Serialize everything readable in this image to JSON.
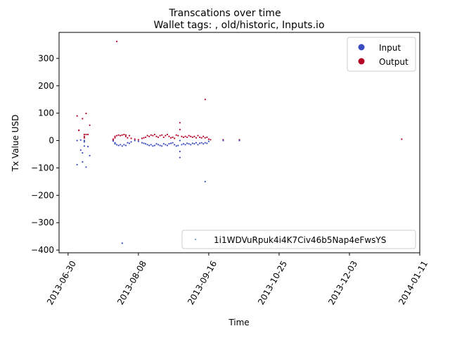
{
  "chart_data": {
    "type": "scatter",
    "title": "Transcations over time",
    "subtitle": "Wallet tags: , old/historic, Inputs.io",
    "xlabel": "Time",
    "ylabel": "Tx Value USD",
    "x_range": [
      "2013-06-25",
      "2014-01-11"
    ],
    "ylim": [
      -410,
      395
    ],
    "x_ticks": [
      "2013-06-30",
      "2013-08-08",
      "2013-09-16",
      "2013-10-25",
      "2013-12-03",
      "2014-01-11"
    ],
    "y_ticks": [
      -400,
      -300,
      -200,
      -100,
      0,
      100,
      200,
      300
    ],
    "grid": false,
    "legend_top": {
      "position": "upper right",
      "entries": [
        {
          "label": "Input",
          "color": "#3b4cc0"
        },
        {
          "label": "Output",
          "color": "#b40426"
        }
      ]
    },
    "legend_bottom": {
      "position": "lower right",
      "entries": [
        {
          "label": "1i1WDVuRpuk4i4K7Civ46b5Nap4eFwsYS",
          "color": "#3b8ea5"
        }
      ]
    },
    "series": [
      {
        "name": "Output",
        "color": "#b40426",
        "points": [
          [
            "2013-07-05",
            90
          ],
          [
            "2013-07-06",
            38
          ],
          [
            "2013-07-06",
            37
          ],
          [
            "2013-07-08",
            80
          ],
          [
            "2013-07-09",
            22
          ],
          [
            "2013-07-09",
            15
          ],
          [
            "2013-07-09",
            10
          ],
          [
            "2013-07-10",
            99
          ],
          [
            "2013-07-10",
            22
          ],
          [
            "2013-07-11",
            22
          ],
          [
            "2013-07-12",
            56
          ],
          [
            "2013-07-25",
            2
          ],
          [
            "2013-07-25",
            5
          ],
          [
            "2013-07-26",
            10
          ],
          [
            "2013-07-26",
            15
          ],
          [
            "2013-07-27",
            362
          ],
          [
            "2013-07-27",
            18
          ],
          [
            "2013-07-28",
            20
          ],
          [
            "2013-07-29",
            18
          ],
          [
            "2013-07-30",
            20
          ],
          [
            "2013-07-31",
            22
          ],
          [
            "2013-08-01",
            15
          ],
          [
            "2013-08-01",
            20
          ],
          [
            "2013-08-02",
            10
          ],
          [
            "2013-08-03",
            18
          ],
          [
            "2013-08-04",
            8
          ],
          [
            "2013-08-06",
            5
          ],
          [
            "2013-08-08",
            3
          ],
          [
            "2013-08-10",
            8
          ],
          [
            "2013-08-11",
            10
          ],
          [
            "2013-08-12",
            12
          ],
          [
            "2013-08-13",
            18
          ],
          [
            "2013-08-14",
            15
          ],
          [
            "2013-08-15",
            20
          ],
          [
            "2013-08-16",
            18
          ],
          [
            "2013-08-17",
            22
          ],
          [
            "2013-08-18",
            15
          ],
          [
            "2013-08-19",
            12
          ],
          [
            "2013-08-20",
            18
          ],
          [
            "2013-08-21",
            20
          ],
          [
            "2013-08-22",
            12
          ],
          [
            "2013-08-23",
            18
          ],
          [
            "2013-08-24",
            22
          ],
          [
            "2013-08-25",
            15
          ],
          [
            "2013-08-26",
            10
          ],
          [
            "2013-08-27",
            12
          ],
          [
            "2013-08-28",
            8
          ],
          [
            "2013-08-29",
            20
          ],
          [
            "2013-08-30",
            18
          ],
          [
            "2013-08-31",
            65
          ],
          [
            "2013-08-31",
            40
          ],
          [
            "2013-09-01",
            15
          ],
          [
            "2013-09-02",
            12
          ],
          [
            "2013-09-03",
            15
          ],
          [
            "2013-09-04",
            12
          ],
          [
            "2013-09-05",
            18
          ],
          [
            "2013-09-06",
            15
          ],
          [
            "2013-09-07",
            12
          ],
          [
            "2013-09-08",
            15
          ],
          [
            "2013-09-09",
            10
          ],
          [
            "2013-09-10",
            18
          ],
          [
            "2013-09-11",
            12
          ],
          [
            "2013-09-12",
            10
          ],
          [
            "2013-09-13",
            15
          ],
          [
            "2013-09-14",
            150
          ],
          [
            "2013-09-14",
            10
          ],
          [
            "2013-09-15",
            12
          ],
          [
            "2013-09-16",
            5
          ],
          [
            "2013-09-17",
            3
          ],
          [
            "2013-09-24",
            3
          ],
          [
            "2013-10-03",
            3
          ],
          [
            "2014-01-01",
            5
          ]
        ]
      },
      {
        "name": "Input",
        "color": "#3b4cc0",
        "points": [
          [
            "2013-07-05",
            0
          ],
          [
            "2013-07-05",
            -88
          ],
          [
            "2013-07-07",
            -35
          ],
          [
            "2013-07-07",
            2
          ],
          [
            "2013-07-08",
            -45
          ],
          [
            "2013-07-08",
            -78
          ],
          [
            "2013-07-09",
            -20
          ],
          [
            "2013-07-09",
            -5
          ],
          [
            "2013-07-09",
            0
          ],
          [
            "2013-07-10",
            -97
          ],
          [
            "2013-07-11",
            -22
          ],
          [
            "2013-07-12",
            -55
          ],
          [
            "2013-07-25",
            -2
          ],
          [
            "2013-07-26",
            -8
          ],
          [
            "2013-07-26",
            -12
          ],
          [
            "2013-07-27",
            -15
          ],
          [
            "2013-07-28",
            -18
          ],
          [
            "2013-07-29",
            -15
          ],
          [
            "2013-07-30",
            -375
          ],
          [
            "2013-07-30",
            -20
          ],
          [
            "2013-07-31",
            -15
          ],
          [
            "2013-08-01",
            -18
          ],
          [
            "2013-08-02",
            -8
          ],
          [
            "2013-08-03",
            -10
          ],
          [
            "2013-08-04",
            -5
          ],
          [
            "2013-08-06",
            0
          ],
          [
            "2013-08-08",
            -3
          ],
          [
            "2013-08-10",
            -8
          ],
          [
            "2013-08-11",
            -10
          ],
          [
            "2013-08-12",
            -12
          ],
          [
            "2013-08-13",
            -15
          ],
          [
            "2013-08-14",
            -18
          ],
          [
            "2013-08-15",
            -15
          ],
          [
            "2013-08-16",
            -20
          ],
          [
            "2013-08-17",
            -18
          ],
          [
            "2013-08-18",
            -12
          ],
          [
            "2013-08-19",
            -15
          ],
          [
            "2013-08-20",
            -18
          ],
          [
            "2013-08-21",
            -20
          ],
          [
            "2013-08-22",
            -12
          ],
          [
            "2013-08-23",
            -15
          ],
          [
            "2013-08-24",
            -18
          ],
          [
            "2013-08-25",
            -12
          ],
          [
            "2013-08-26",
            -10
          ],
          [
            "2013-08-27",
            -8
          ],
          [
            "2013-08-28",
            -15
          ],
          [
            "2013-08-29",
            -20
          ],
          [
            "2013-08-30",
            -18
          ],
          [
            "2013-08-31",
            -62
          ],
          [
            "2013-08-31",
            -40
          ],
          [
            "2013-08-31",
            0
          ],
          [
            "2013-09-01",
            -15
          ],
          [
            "2013-09-02",
            -12
          ],
          [
            "2013-09-03",
            -15
          ],
          [
            "2013-09-04",
            -10
          ],
          [
            "2013-09-05",
            -12
          ],
          [
            "2013-09-06",
            -15
          ],
          [
            "2013-09-07",
            -10
          ],
          [
            "2013-09-08",
            -12
          ],
          [
            "2013-09-09",
            -8
          ],
          [
            "2013-09-10",
            -15
          ],
          [
            "2013-09-11",
            -10
          ],
          [
            "2013-09-12",
            -8
          ],
          [
            "2013-09-13",
            -12
          ],
          [
            "2013-09-14",
            -150
          ],
          [
            "2013-09-14",
            -8
          ],
          [
            "2013-09-15",
            -10
          ],
          [
            "2013-09-16",
            -3
          ],
          [
            "2013-09-24",
            0
          ],
          [
            "2013-10-03",
            0
          ]
        ]
      }
    ]
  }
}
